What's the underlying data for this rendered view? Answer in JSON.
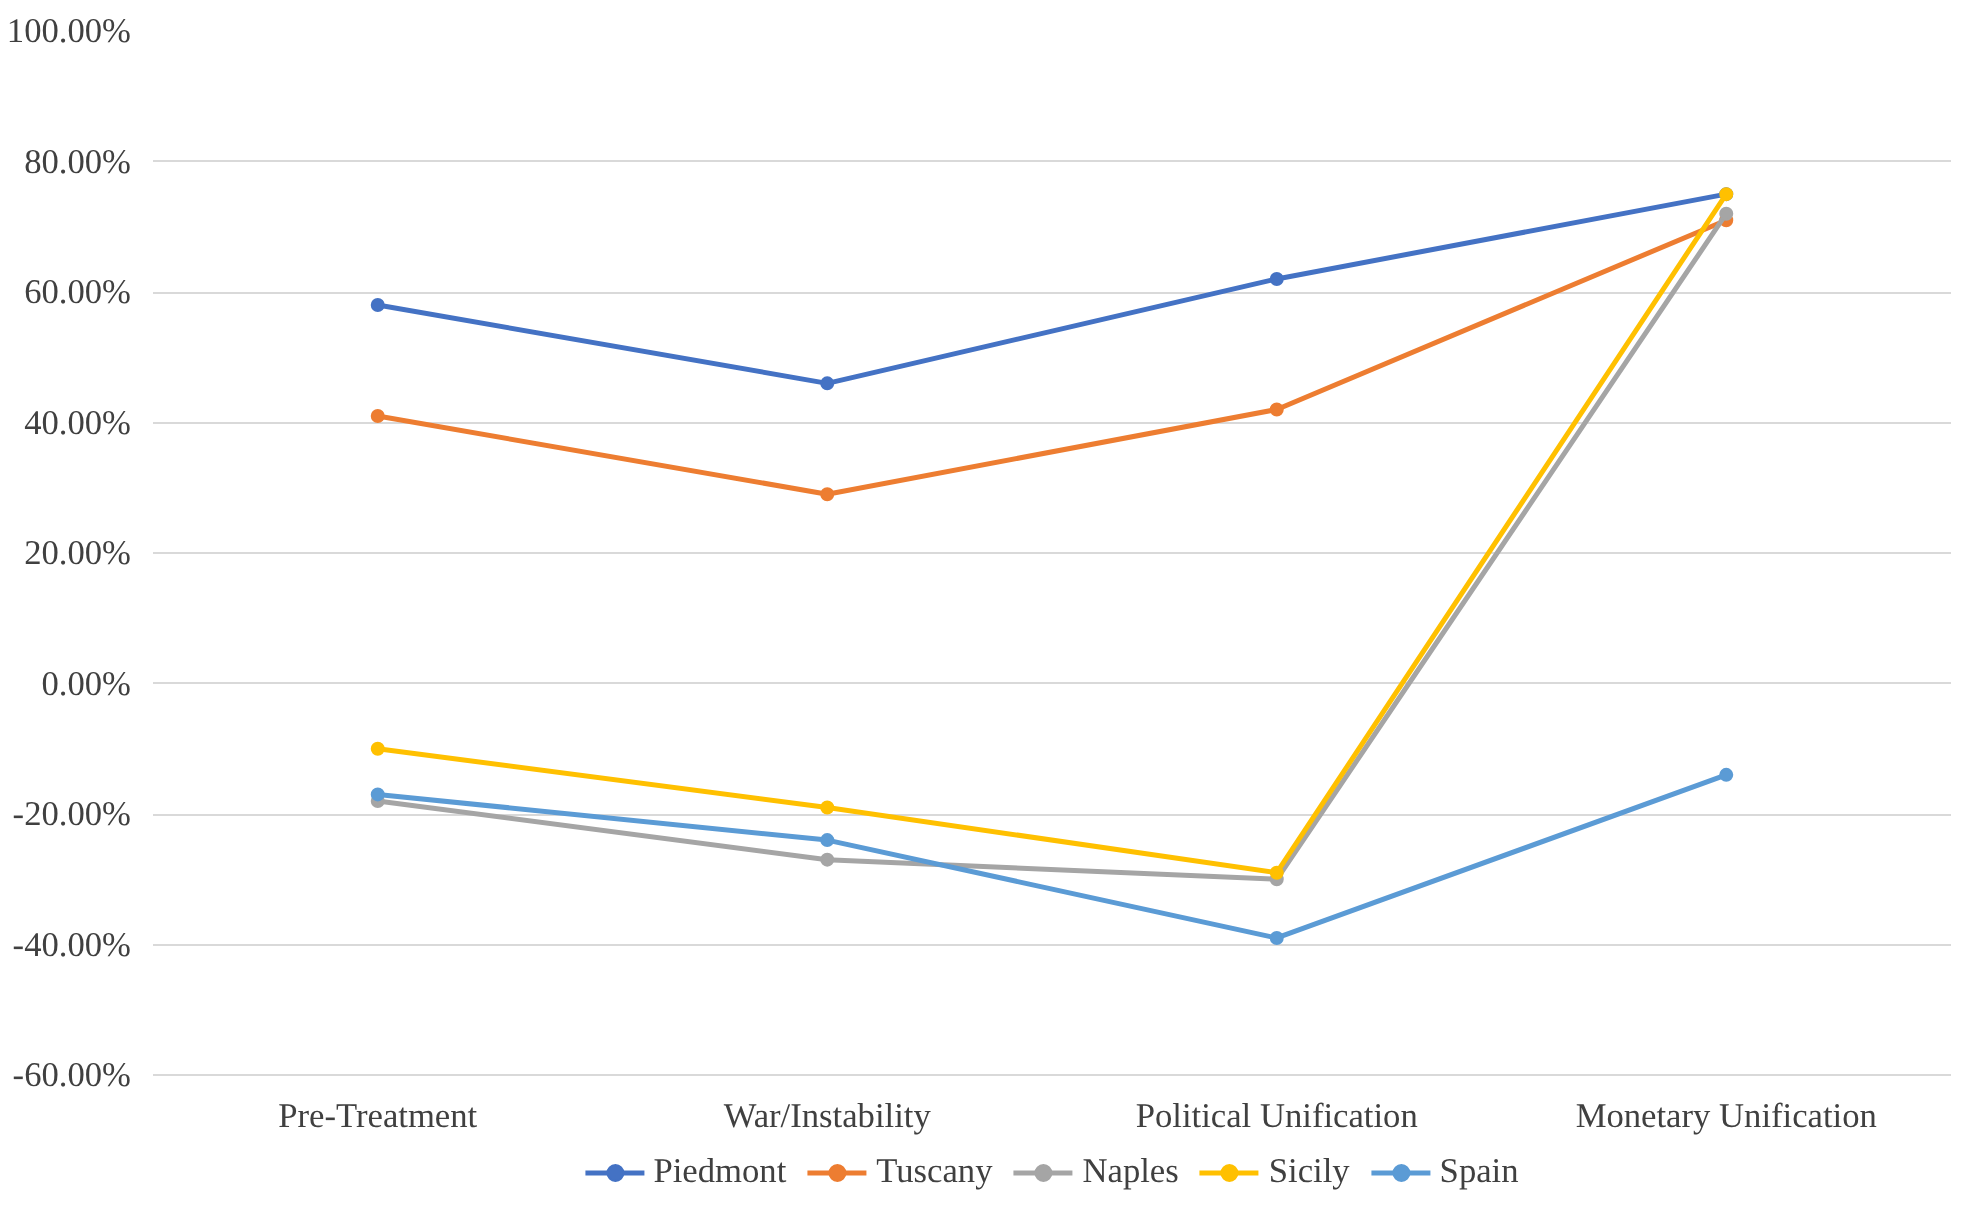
{
  "chart_data": {
    "type": "line",
    "categories": [
      "Pre-Treatment",
      "War/Instability",
      "Political Unification",
      "Monetary Unification"
    ],
    "series": [
      {
        "name": "Piedmont",
        "color": "#4472c4",
        "values": [
          58,
          46,
          62,
          75
        ]
      },
      {
        "name": "Tuscany",
        "color": "#ed7d31",
        "values": [
          41,
          29,
          42,
          71
        ]
      },
      {
        "name": "Naples",
        "color": "#a5a5a5",
        "values": [
          -18,
          -27,
          -30,
          72
        ]
      },
      {
        "name": "Sicily",
        "color": "#ffc000",
        "values": [
          -10,
          -19,
          -29,
          75
        ]
      },
      {
        "name": "Spain",
        "color": "#5b9bd5",
        "values": [
          -17,
          -24,
          -39,
          -14
        ]
      }
    ],
    "ylim": [
      -60,
      100
    ],
    "yticks": [
      {
        "value": -60,
        "label": "-60.00%"
      },
      {
        "value": -40,
        "label": "-40.00%"
      },
      {
        "value": -20,
        "label": "-20.00%"
      },
      {
        "value": 0,
        "label": "0.00%"
      },
      {
        "value": 20,
        "label": "20.00%"
      },
      {
        "value": 40,
        "label": "40.00%"
      },
      {
        "value": 60,
        "label": "60.00%"
      },
      {
        "value": 80,
        "label": "80.00%"
      },
      {
        "value": 100,
        "label": "100.00%"
      }
    ],
    "grid": "y",
    "legend": "bottom",
    "marker": "circle",
    "line_style": "solid"
  }
}
